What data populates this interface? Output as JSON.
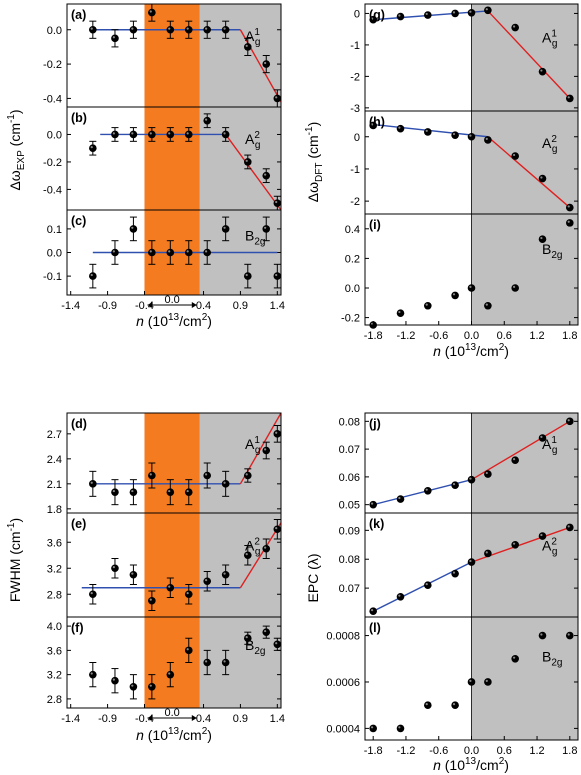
{
  "chart_data": [
    {
      "type": "scatter",
      "name": "(a)",
      "label": "(a)",
      "mode": "A1g",
      "ylim": [
        -0.45,
        0.15
      ],
      "yticks": [
        0.0,
        -0.2,
        -0.4
      ],
      "xlim": [
        -1.45,
        1.45
      ],
      "x": [
        -1.1,
        -0.8,
        -0.55,
        -0.3,
        -0.05,
        0.2,
        0.45,
        0.7,
        1.0,
        1.25,
        1.4
      ],
      "y": [
        0.0,
        -0.05,
        0.0,
        0.1,
        0.0,
        0.0,
        0.0,
        0.0,
        -0.1,
        -0.2,
        -0.4
      ],
      "err": [
        0.05,
        0.05,
        0.05,
        0.05,
        0.05,
        0.05,
        0.05,
        0.05,
        0.05,
        0.05,
        0.05
      ],
      "fit_lines": [
        {
          "color": "blue",
          "x": [
            -1.1,
            0.9
          ],
          "y": [
            0.0,
            0.0
          ]
        },
        {
          "color": "red",
          "x": [
            0.9,
            1.45
          ],
          "y": [
            0.0,
            -0.42
          ]
        }
      ]
    },
    {
      "type": "scatter",
      "name": "(b)",
      "label": "(b)",
      "mode": "A2g",
      "ylim": [
        -0.55,
        0.2
      ],
      "yticks": [
        0.0,
        -0.2,
        -0.4
      ],
      "xlim": [
        -1.45,
        1.45
      ],
      "x": [
        -1.1,
        -0.8,
        -0.55,
        -0.3,
        -0.05,
        0.2,
        0.45,
        0.7,
        1.0,
        1.25,
        1.4
      ],
      "y": [
        -0.1,
        0.0,
        0.0,
        0.0,
        0.0,
        0.0,
        0.1,
        0.0,
        -0.2,
        -0.3,
        -0.5
      ],
      "err": [
        0.05,
        0.05,
        0.05,
        0.05,
        0.05,
        0.05,
        0.05,
        0.05,
        0.05,
        0.05,
        0.05
      ],
      "fit_lines": [
        {
          "color": "blue",
          "x": [
            -1.0,
            0.7
          ],
          "y": [
            0.0,
            0.0
          ]
        },
        {
          "color": "red",
          "x": [
            0.7,
            1.45
          ],
          "y": [
            0.0,
            -0.55
          ]
        }
      ]
    },
    {
      "type": "scatter",
      "name": "(c)",
      "label": "(c)",
      "mode": "B2g",
      "ylim": [
        -0.18,
        0.18
      ],
      "yticks": [
        0.1,
        0.0,
        -0.1
      ],
      "xlim": [
        -1.45,
        1.45
      ],
      "x": [
        -1.1,
        -0.8,
        -0.55,
        -0.3,
        -0.05,
        0.2,
        0.45,
        0.7,
        1.0,
        1.25,
        1.4
      ],
      "y": [
        -0.1,
        0.0,
        0.1,
        0.0,
        0.0,
        0.0,
        0.0,
        0.1,
        -0.1,
        0.1,
        -0.1
      ],
      "err": [
        0.05,
        0.05,
        0.05,
        0.05,
        0.05,
        0.05,
        0.05,
        0.05,
        0.05,
        0.05,
        0.05
      ],
      "fit_lines": [
        {
          "color": "blue",
          "x": [
            -1.1,
            1.4
          ],
          "y": [
            0.0,
            0.0
          ]
        }
      ]
    },
    {
      "type": "scatter",
      "name": "(g)",
      "label": "(g)",
      "mode": "A1g",
      "ylim": [
        -3.1,
        0.3
      ],
      "yticks": [
        0,
        -1,
        -2,
        -3
      ],
      "xlim": [
        -1.95,
        1.95
      ],
      "x": [
        -1.8,
        -1.3,
        -0.8,
        -0.3,
        0.0,
        0.3,
        0.8,
        1.3,
        1.8
      ],
      "y": [
        -0.2,
        -0.1,
        -0.05,
        0.0,
        0.02,
        0.1,
        -0.45,
        -1.85,
        -2.7
      ],
      "fit_lines": [
        {
          "color": "blue",
          "x": [
            -1.8,
            0.3
          ],
          "y": [
            -0.2,
            0.08
          ]
        },
        {
          "color": "red",
          "x": [
            0.3,
            1.8
          ],
          "y": [
            0.08,
            -2.7
          ]
        }
      ]
    },
    {
      "type": "scatter",
      "name": "(h)",
      "label": "(h)",
      "mode": "A2g",
      "ylim": [
        -2.4,
        0.8
      ],
      "yticks": [
        0,
        -1,
        -2
      ],
      "xlim": [
        -1.95,
        1.95
      ],
      "x": [
        -1.8,
        -1.3,
        -0.8,
        -0.3,
        0.0,
        0.3,
        0.8,
        1.3,
        1.8
      ],
      "y": [
        0.35,
        0.25,
        0.15,
        0.05,
        0.0,
        -0.1,
        -0.6,
        -1.3,
        -2.2
      ],
      "fit_lines": [
        {
          "color": "blue",
          "x": [
            -1.8,
            0.3
          ],
          "y": [
            0.38,
            0.0
          ]
        },
        {
          "color": "red",
          "x": [
            0.3,
            1.8
          ],
          "y": [
            0.0,
            -2.2
          ]
        }
      ]
    },
    {
      "type": "scatter",
      "name": "(i)",
      "label": "(i)",
      "mode": "B2g",
      "ylim": [
        -0.25,
        0.5
      ],
      "yticks": [
        0.4,
        0.2,
        0.0,
        -0.2
      ],
      "xlim": [
        -1.95,
        1.95
      ],
      "x": [
        -1.8,
        -1.3,
        -0.8,
        -0.3,
        0.0,
        0.3,
        0.8,
        1.3,
        1.8
      ],
      "y": [
        -0.25,
        -0.17,
        -0.12,
        -0.05,
        0.0,
        -0.12,
        0.0,
        0.33,
        0.44
      ]
    },
    {
      "type": "scatter",
      "name": "(d)",
      "label": "(d)",
      "mode": "A1g",
      "ylim": [
        1.75,
        2.95
      ],
      "yticks": [
        2.7,
        2.4,
        2.1,
        1.8
      ],
      "xlim": [
        -1.45,
        1.45
      ],
      "x": [
        -1.1,
        -0.8,
        -0.55,
        -0.3,
        -0.05,
        0.2,
        0.45,
        0.7,
        1.0,
        1.25,
        1.4
      ],
      "y": [
        2.1,
        2.0,
        2.0,
        2.2,
        2.0,
        2.0,
        2.2,
        2.1,
        2.2,
        2.5,
        2.7
      ],
      "err": [
        0.15,
        0.15,
        0.15,
        0.15,
        0.15,
        0.15,
        0.15,
        0.15,
        0.08,
        0.1,
        0.1
      ],
      "fit_lines": [
        {
          "color": "blue",
          "x": [
            -1.1,
            0.9
          ],
          "y": [
            2.1,
            2.1
          ]
        },
        {
          "color": "red",
          "x": [
            0.9,
            1.45
          ],
          "y": [
            2.1,
            2.95
          ]
        }
      ]
    },
    {
      "type": "scatter",
      "name": "(e)",
      "label": "(e)",
      "mode": "A2g",
      "ylim": [
        2.45,
        4.05
      ],
      "yticks": [
        3.6,
        3.2,
        2.8
      ],
      "xlim": [
        -1.45,
        1.45
      ],
      "x": [
        -1.1,
        -0.8,
        -0.55,
        -0.3,
        -0.05,
        0.2,
        0.45,
        0.7,
        1.0,
        1.25,
        1.4
      ],
      "y": [
        2.8,
        3.2,
        3.1,
        2.7,
        2.9,
        2.8,
        3.0,
        3.1,
        3.4,
        3.5,
        3.8
      ],
      "err": [
        0.15,
        0.15,
        0.15,
        0.15,
        0.15,
        0.15,
        0.15,
        0.15,
        0.15,
        0.15,
        0.15
      ],
      "fit_lines": [
        {
          "color": "blue",
          "x": [
            -1.25,
            0.9
          ],
          "y": [
            2.9,
            2.9
          ]
        },
        {
          "color": "red",
          "x": [
            0.9,
            1.45
          ],
          "y": [
            2.9,
            3.9
          ]
        }
      ]
    },
    {
      "type": "scatter",
      "name": "(f)",
      "label": "(f)",
      "mode": "B2g",
      "ylim": [
        2.65,
        4.15
      ],
      "yticks": [
        4.0,
        3.6,
        3.2,
        2.8
      ],
      "xlim": [
        -1.45,
        1.45
      ],
      "x": [
        -1.1,
        -0.8,
        -0.55,
        -0.3,
        -0.05,
        0.2,
        0.45,
        0.7,
        1.0,
        1.25,
        1.4
      ],
      "y": [
        3.2,
        3.1,
        3.0,
        3.0,
        3.2,
        3.6,
        3.4,
        3.4,
        3.8,
        3.9,
        3.7
      ],
      "err": [
        0.2,
        0.2,
        0.2,
        0.2,
        0.2,
        0.2,
        0.2,
        0.2,
        0.1,
        0.1,
        0.1
      ],
      "fit_lines": []
    },
    {
      "type": "scatter",
      "name": "(j)",
      "label": "(j)",
      "mode": "A1g",
      "ylim": [
        0.047,
        0.083
      ],
      "yticks": [
        0.08,
        0.07,
        0.06,
        0.05
      ],
      "xlim": [
        -1.95,
        1.95
      ],
      "x": [
        -1.8,
        -1.3,
        -0.8,
        -0.3,
        0.0,
        0.3,
        0.8,
        1.3,
        1.8
      ],
      "y": [
        0.05,
        0.052,
        0.055,
        0.057,
        0.059,
        0.061,
        0.066,
        0.074,
        0.08
      ],
      "fit_lines": [
        {
          "color": "blue",
          "x": [
            -1.8,
            0.0
          ],
          "y": [
            0.05,
            0.059
          ]
        },
        {
          "color": "red",
          "x": [
            0.0,
            1.8
          ],
          "y": [
            0.059,
            0.08
          ]
        }
      ]
    },
    {
      "type": "scatter",
      "name": "(k)",
      "label": "(k)",
      "mode": "A2g",
      "ylim": [
        0.06,
        0.096
      ],
      "yticks": [
        0.09,
        0.08,
        0.07
      ],
      "xlim": [
        -1.95,
        1.95
      ],
      "x": [
        -1.8,
        -1.3,
        -0.8,
        -0.3,
        0.0,
        0.3,
        0.8,
        1.3,
        1.8
      ],
      "y": [
        0.062,
        0.067,
        0.071,
        0.075,
        0.079,
        0.082,
        0.085,
        0.088,
        0.091
      ],
      "fit_lines": [
        {
          "color": "blue",
          "x": [
            -1.8,
            0.0
          ],
          "y": [
            0.062,
            0.079
          ]
        },
        {
          "color": "red",
          "x": [
            0.0,
            1.8
          ],
          "y": [
            0.079,
            0.091
          ]
        }
      ]
    },
    {
      "type": "scatter",
      "name": "(l)",
      "label": "(l)",
      "mode": "B2g",
      "ylim": [
        0.00035,
        0.00088
      ],
      "yticks": [
        0.0008,
        0.0006,
        0.0004
      ],
      "xlim": [
        -1.95,
        1.95
      ],
      "x": [
        -1.8,
        -1.3,
        -0.8,
        -0.3,
        0.0,
        0.3,
        0.8,
        1.3,
        1.8
      ],
      "y": [
        0.0004,
        0.0004,
        0.0005,
        0.0005,
        0.0006,
        0.0006,
        0.0007,
        0.0008,
        0.0008
      ]
    }
  ],
  "texts": {
    "ylabel_exp": "Δω",
    "ylabel_exp_sub": "EXP",
    "ylabel_exp_unit": " (cm",
    "ylabel_exp_sup": "-1",
    "ylabel_exp_end": ")",
    "ylabel_dft": "Δω",
    "ylabel_dft_sub": "DFT",
    "ylabel_dft_unit": " (cm",
    "ylabel_dft_sup": "-1",
    "ylabel_dft_end": ")",
    "ylabel_fwhm": "FWHM (cm",
    "ylabel_fwhm_sup": "-1",
    "ylabel_fwhm_end": ")",
    "ylabel_epc": "EPC (λ)",
    "xlabel_n": "n",
    "xlabel_unit": " (10",
    "xlabel_sup13": "13",
    "xlabel_mid": "/cm",
    "xlabel_sup2": "2",
    "xlabel_end": ")",
    "window_label": "0.0",
    "xticks_exp": [
      "-1.4",
      "-0.9",
      "-0.4",
      "0.4",
      "0.9",
      "1.4"
    ],
    "xticks_dft": [
      "-1.8",
      "-1.2",
      "-0.6",
      "0.0",
      "0.6",
      "1.2",
      "1.8"
    ],
    "mode_A": "A",
    "mode_B": "B",
    "mode_sup1": "1",
    "mode_sup2": "2",
    "mode_g": "g",
    "mode_2g": "2g"
  },
  "colors": {
    "orange": "#f47b20",
    "gray": "#c0c0c0",
    "blue_line": "#3050b0",
    "red_line": "#e02020",
    "marker": "#000000"
  }
}
